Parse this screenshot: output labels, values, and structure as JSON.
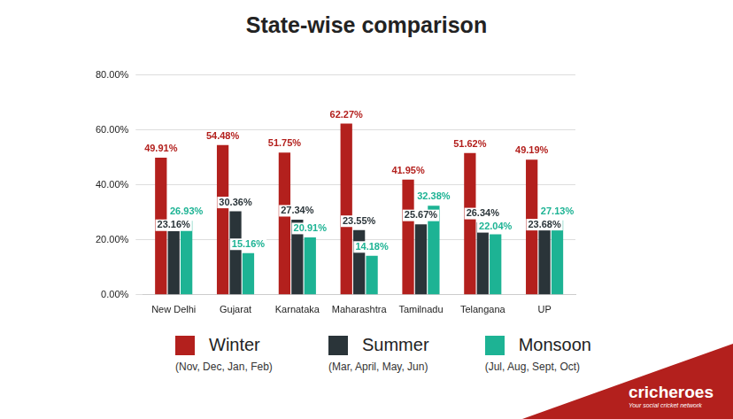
{
  "chart_data": {
    "type": "bar",
    "title": "State-wise comparison",
    "categories": [
      "New Delhi",
      "Gujarat",
      "Karnataka",
      "Maharashtra",
      "Tamilnadu",
      "Telangana",
      "UP"
    ],
    "series": [
      {
        "name": "Winter",
        "period": "(Nov, Dec, Jan, Feb)",
        "color": "#b3201d",
        "values": [
          49.91,
          54.48,
          51.75,
          62.27,
          41.95,
          51.62,
          49.19
        ],
        "value_labels": [
          "49.91%",
          "54.48%",
          "51.75%",
          "62.27%",
          "41.95%",
          "51.62%",
          "49.19%"
        ]
      },
      {
        "name": "Summer",
        "period": "(Mar, April, May, Jun)",
        "color": "#2a3439",
        "values": [
          23.16,
          30.36,
          27.34,
          23.55,
          25.67,
          26.34,
          23.68
        ],
        "value_labels": [
          "23.16%",
          "30.36%",
          "27.34%",
          "23.55%",
          "25.67%",
          "26.34%",
          "23.68%"
        ]
      },
      {
        "name": "Monsoon",
        "period": "(Jul, Aug, Sept, Oct)",
        "color": "#1db394",
        "values": [
          26.93,
          15.16,
          20.91,
          14.18,
          32.38,
          22.04,
          27.13
        ],
        "value_labels": [
          "26.93%",
          "15.16%",
          "20.91%",
          "14.18%",
          "32.38%",
          "22.04%",
          "27.13%"
        ]
      }
    ],
    "ylim": [
      0,
      80
    ],
    "yticks": [
      {
        "value": 0,
        "label": "0.00%"
      },
      {
        "value": 20,
        "label": "20.00%"
      },
      {
        "value": 40,
        "label": "40.00%"
      },
      {
        "value": 60,
        "label": "60.00%"
      },
      {
        "value": 80,
        "label": "80.00%"
      }
    ],
    "grid": true,
    "legend": "bottom",
    "data_labels": true,
    "annotations": [
      "cricheroes",
      "Your social cricket network"
    ]
  }
}
